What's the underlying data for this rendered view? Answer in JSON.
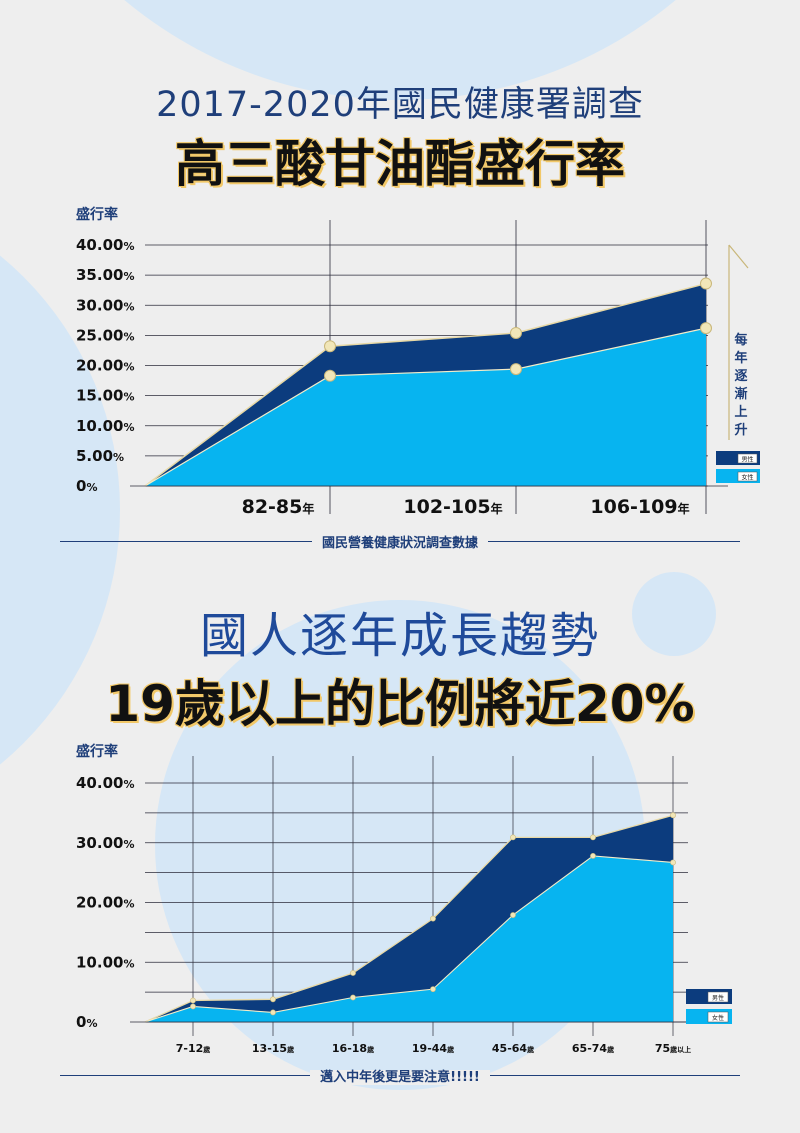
{
  "header1": {
    "title": "2017-2020年國民健康署調查",
    "headline": "高三酸甘油酯盛行率"
  },
  "header2": {
    "title": "國人逐年成長趨勢",
    "headline": "19歲以上的比例將近20%"
  },
  "colors": {
    "male": "#0c3c7e",
    "female": "#07b4f0",
    "accent": "#e8d9a6",
    "title_blue": "#1f3f7a"
  },
  "chart_data": [
    {
      "type": "area",
      "ylabel": "盛行率",
      "ylim": [
        0,
        40
      ],
      "yticks": [
        "40.00%",
        "35.00%",
        "30.00%",
        "25.00%",
        "20.00%",
        "15.00%",
        "10.00%",
        "5.00%",
        "0%"
      ],
      "categories": [
        "82-85",
        "102-105",
        "106-109"
      ],
      "category_suffix": "年",
      "series": [
        {
          "name": "男性",
          "values": [
            23.2,
            25.4,
            33.6
          ]
        },
        {
          "name": "女性",
          "values": [
            18.3,
            19.4,
            26.2
          ]
        }
      ],
      "annotation": "每年逐漸上升",
      "source": "國民營養健康狀況調查數據",
      "legend": "right"
    },
    {
      "type": "area",
      "ylabel": "盛行率",
      "ylim": [
        0,
        40
      ],
      "yticks": [
        "40.00%",
        "30.00%",
        "20.00%",
        "10.00%",
        "0%"
      ],
      "categories": [
        "7-12",
        "13-15",
        "16-18",
        "19-44",
        "45-64",
        "65-74",
        "75"
      ],
      "category_suffixes": [
        "歲",
        "歲",
        "歲",
        "歲",
        "歲",
        "歲",
        "歲以上"
      ],
      "series": [
        {
          "name": "男性",
          "values": [
            3.6,
            3.8,
            8.2,
            17.3,
            30.9,
            30.9,
            34.6
          ]
        },
        {
          "name": "女性",
          "values": [
            2.6,
            1.6,
            4.1,
            5.5,
            17.9,
            27.8,
            26.7
          ]
        }
      ],
      "note": "邁入中年後更是要注意!!!!!",
      "legend": "right"
    }
  ]
}
